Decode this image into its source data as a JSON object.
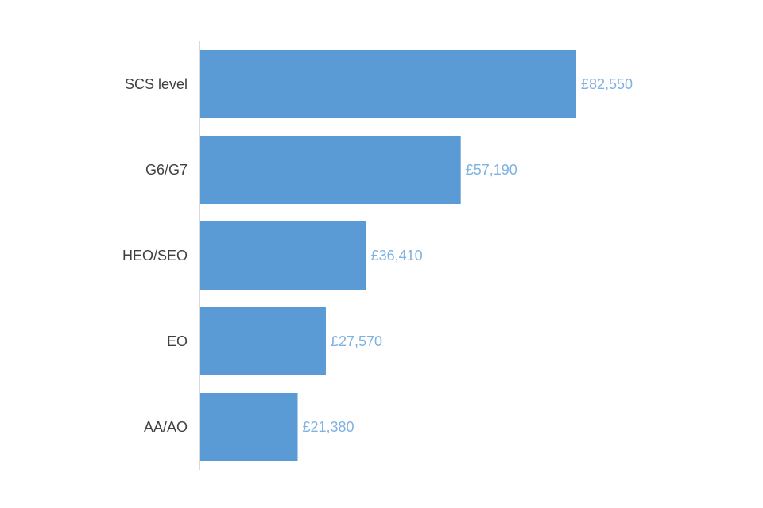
{
  "chart_data": {
    "type": "bar",
    "orientation": "horizontal",
    "categories": [
      "SCS level",
      "G6/G7",
      "HEO/SEO",
      "EO",
      "AA/AO"
    ],
    "values": [
      82550,
      57190,
      36410,
      27570,
      21380
    ],
    "value_labels": [
      "£82,550",
      "£57,190",
      "£36,410",
      "£27,570",
      "£21,380"
    ],
    "xlim": [
      0,
      100000
    ],
    "grid": false,
    "legend": "none",
    "colors": {
      "bar": "#5b9bd5",
      "value_label": "#7fb2e0",
      "category_label": "#404040",
      "axis_line": "#d9d9d9"
    }
  }
}
